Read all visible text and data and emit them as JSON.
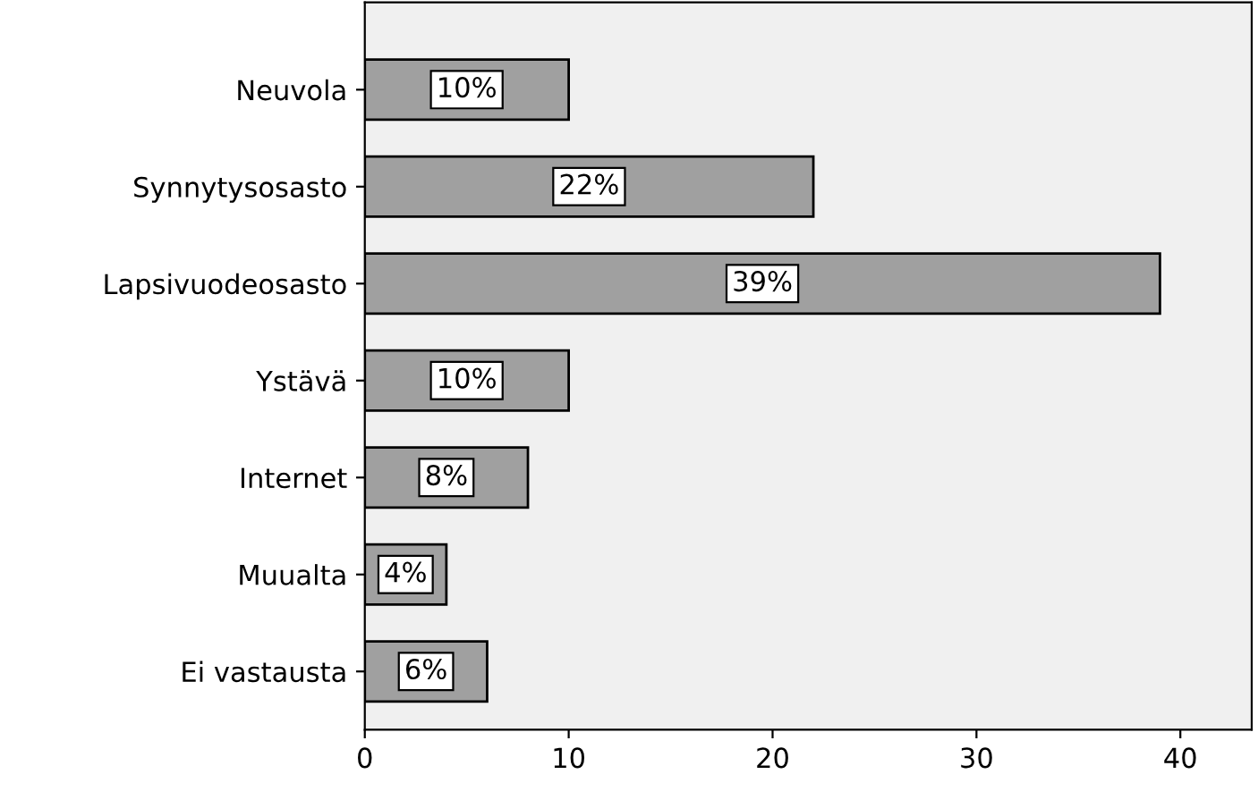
{
  "chart_data": {
    "type": "bar",
    "orientation": "horizontal",
    "categories": [
      "Neuvola",
      "Synnytysosasto",
      "Lapsivuodeosasto",
      "Ystävä",
      "Internet",
      "Muualta",
      "Ei vastausta"
    ],
    "values": [
      10,
      22,
      39,
      10,
      8,
      4,
      6
    ],
    "value_labels": [
      "10%",
      "22%",
      "39%",
      "10%",
      "8%",
      "4%",
      "6%"
    ],
    "color": "#a0a0a0",
    "xlim": [
      0,
      43.5
    ],
    "xticks": [
      0,
      10,
      20,
      30,
      40
    ],
    "grid": false
  }
}
